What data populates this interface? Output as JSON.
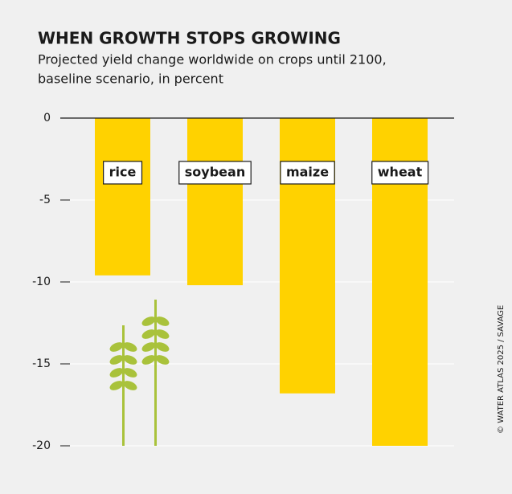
{
  "chart_data": {
    "type": "bar",
    "title": "WHEN GROWTH STOPS GROWING",
    "subtitle": [
      "Projected yield change worldwide on crops until 2100,",
      "baseline scenario, in percent"
    ],
    "categories": [
      "rice",
      "soybean",
      "maize",
      "wheat"
    ],
    "values": [
      -9.6,
      -10.2,
      -16.8,
      -20
    ],
    "color": "#ffd200",
    "ylim": [
      -20,
      0
    ],
    "yticks": [
      0,
      -5,
      -10,
      -15,
      -20
    ],
    "grid": true,
    "credit": "© WATER ATLAS 2025 / SAVAGE"
  }
}
